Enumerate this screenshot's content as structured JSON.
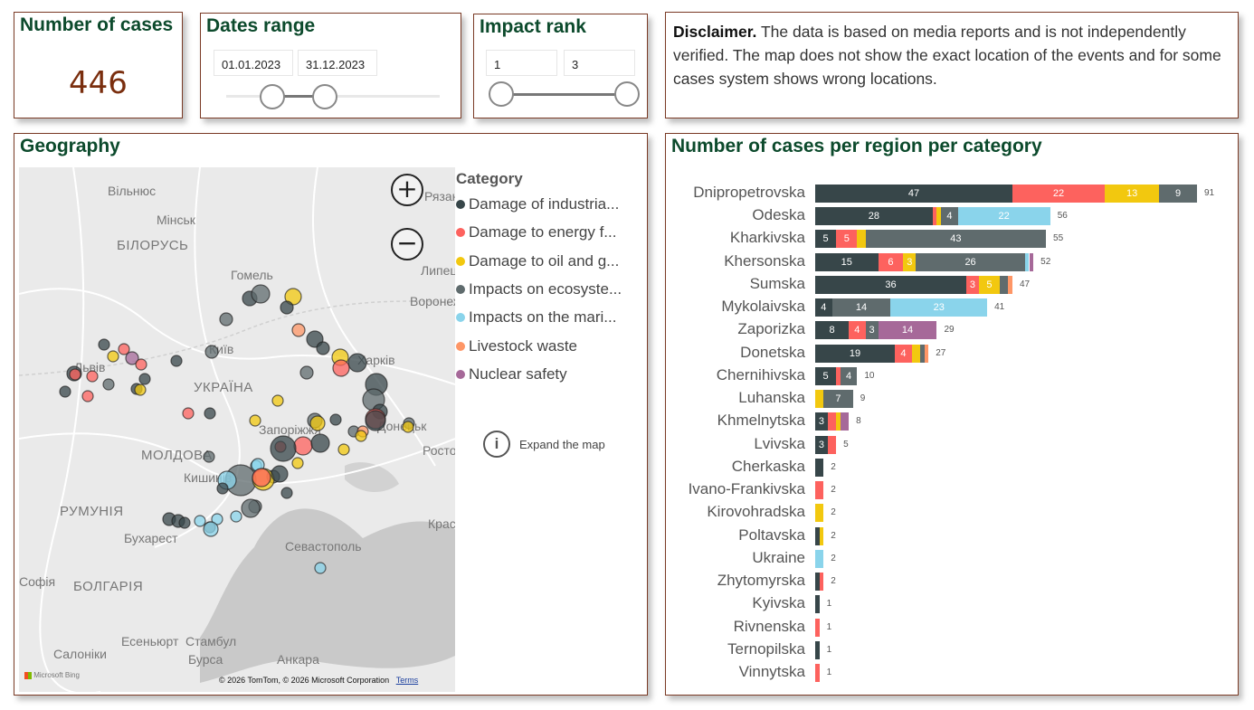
{
  "cases_card": {
    "title": "Number of cases",
    "value": "446"
  },
  "dates_card": {
    "title": "Dates range",
    "start": "01.01.2023",
    "end": "31.12.2023",
    "range_fraction": [
      0.22,
      0.46
    ]
  },
  "impact_card": {
    "title": "Impact rank",
    "min": "1",
    "max": "3"
  },
  "disclaimer": {
    "bold": "Disclaimer.",
    "text": " The data is based on media reports and is not independently verified. The map does not show the exact location of the events and for some cases system shows wrong locations."
  },
  "geography": {
    "title": "Geography",
    "legend_title": "Category",
    "expand_label": "Expand the map",
    "attribution": "© 2026 TomTom, © 2026 Microsoft Corporation",
    "terms": "Terms",
    "bing": "Microsoft Bing",
    "map_labels": [
      "Вільнюс",
      "Мінськ",
      "БІЛОРУСЬ",
      "Гомель",
      "Київ",
      "УКРАЇНА",
      "Львів",
      "МОЛДОВА",
      "Кишинів",
      "РУМУНІЯ",
      "Бухарест",
      "Софія",
      "БОЛГАРІЯ",
      "Салоніки",
      "Есеньюрт",
      "Стамбул",
      "Бурса",
      "Анкара",
      "Севастополь",
      "Краснодар",
      "Ростов",
      "Донецьк",
      "Харків",
      "Запоріжжя",
      "Липецьк",
      "Воронеж",
      "Рязань"
    ]
  },
  "categories": [
    {
      "label": "Damage of industrial facilities",
      "short": "Damage of industria...",
      "color": "#374649"
    },
    {
      "label": "Damage to energy facilities",
      "short": "Damage to energy f...",
      "color": "#fd625e"
    },
    {
      "label": "Damage to oil and gas",
      "short": "Damage to oil and g...",
      "color": "#f2c80f"
    },
    {
      "label": "Impacts on ecosystems",
      "short": "Impacts on ecosyste...",
      "color": "#5f6b6d"
    },
    {
      "label": "Impacts on the marine",
      "short": "Impacts on the mari...",
      "color": "#8ad4eb"
    },
    {
      "label": "Livestock waste",
      "short": "Livestock waste",
      "color": "#fe9666"
    },
    {
      "label": "Nuclear safety",
      "short": "Nuclear safety",
      "color": "#a66999"
    }
  ],
  "chart_data": {
    "type": "bar",
    "orientation": "horizontal",
    "stacked": true,
    "title": "Number of cases per region per category",
    "categories": [
      "Dnipropetrovska",
      "Odeska",
      "Kharkivska",
      "Khersonska",
      "Sumska",
      "Mykolaivska",
      "Zaporizka",
      "Donetska",
      "Chernihivska",
      "Luhanska",
      "Khmelnytska",
      "Lvivska",
      "Cherkaska",
      "Ivano-Frankivska",
      "Kirovohradska",
      "Poltavska",
      "Ukraine",
      "Zhytomyrska",
      "Kyivska",
      "Rivnenska",
      "Ternopilska",
      "Vinnytska"
    ],
    "series": [
      {
        "name": "Damage of industrial facilities",
        "values": [
          47,
          28,
          5,
          15,
          36,
          4,
          8,
          19,
          5,
          0,
          3,
          3,
          2,
          0,
          0,
          1,
          0,
          1,
          1,
          0,
          1,
          0
        ]
      },
      {
        "name": "Damage to energy facilities",
        "values": [
          22,
          1,
          5,
          6,
          3,
          0,
          4,
          4,
          1,
          0,
          2,
          2,
          0,
          2,
          0,
          0,
          0,
          1,
          0,
          1,
          0,
          1
        ]
      },
      {
        "name": "Damage to oil and gas",
        "values": [
          13,
          1,
          2,
          3,
          5,
          0,
          0,
          2,
          0,
          2,
          1,
          0,
          0,
          0,
          2,
          1,
          0,
          0,
          0,
          0,
          0,
          0
        ]
      },
      {
        "name": "Impacts on ecosystems",
        "values": [
          9,
          4,
          43,
          26,
          2,
          14,
          3,
          1,
          4,
          7,
          0,
          0,
          0,
          0,
          0,
          0,
          0,
          0,
          0,
          0,
          0,
          0
        ]
      },
      {
        "name": "Impacts on the marine",
        "values": [
          0,
          22,
          0,
          1,
          0,
          23,
          0,
          0,
          0,
          0,
          0,
          0,
          0,
          0,
          0,
          0,
          2,
          0,
          0,
          0,
          0,
          0
        ]
      },
      {
        "name": "Livestock waste",
        "values": [
          0,
          0,
          0,
          0,
          1,
          0,
          0,
          1,
          0,
          0,
          0,
          0,
          0,
          0,
          0,
          0,
          0,
          0,
          0,
          0,
          0,
          0
        ]
      },
      {
        "name": "Nuclear safety",
        "values": [
          0,
          0,
          0,
          1,
          0,
          0,
          14,
          0,
          0,
          0,
          2,
          0,
          0,
          0,
          0,
          0,
          0,
          0,
          0,
          0,
          0,
          0
        ]
      }
    ],
    "totals": [
      "91",
      "56",
      "55",
      "52",
      "47",
      "41",
      "29",
      "27",
      "10",
      "9",
      "8",
      "5",
      "2",
      "2",
      "2",
      "2",
      "2",
      "2",
      "1",
      "1",
      "1",
      "1"
    ],
    "xlim": [
      0,
      91
    ]
  }
}
